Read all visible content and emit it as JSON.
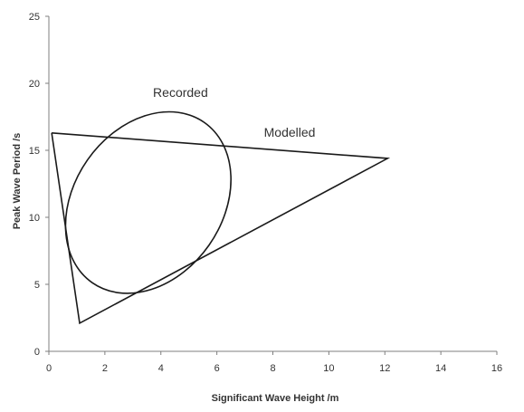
{
  "chart_data": {
    "type": "scatter",
    "xlabel": "Significant Wave Height /m",
    "ylabel": "Peak Wave Period /s",
    "xlim": [
      0,
      16
    ],
    "ylim": [
      0,
      25
    ],
    "xticks": [
      "0",
      "2",
      "4",
      "6",
      "8",
      "10",
      "12",
      "14",
      "16"
    ],
    "yticks": [
      "0",
      "5",
      "10",
      "15",
      "20",
      "25"
    ],
    "grid": false,
    "legend": "none",
    "series": [
      {
        "name": "Modelled",
        "shape": "triangle",
        "points": [
          [
            0.1,
            16.3
          ],
          [
            12.1,
            14.4
          ],
          [
            1.1,
            2.1
          ],
          [
            0.1,
            16.3
          ]
        ]
      },
      {
        "name": "Recorded",
        "shape": "ellipse",
        "center": [
          3.55,
          11.1
        ],
        "semi_axis_major_y": 7.3,
        "semi_axis_minor_x": 2.65,
        "tilt_deg": 35
      }
    ],
    "annotations": [
      {
        "text": "Recorded",
        "x": 4.7,
        "y": 19.0
      },
      {
        "text": "Modelled",
        "x": 8.6,
        "y": 16.0
      }
    ],
    "colors": {
      "line": "#1a1a1a",
      "axis": "#7f7f7f",
      "text": "#333333"
    }
  }
}
